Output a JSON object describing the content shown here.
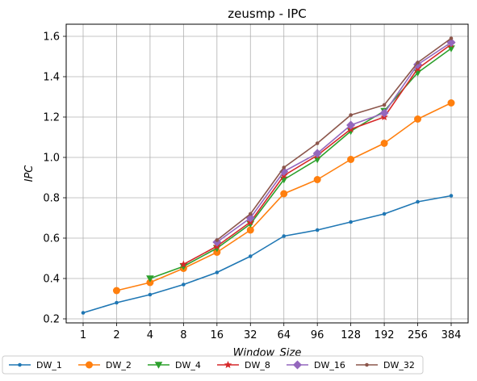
{
  "chart_data": {
    "type": "line",
    "title": "zeusmp - IPC",
    "xlabel": "Window_Size",
    "ylabel": "IPC",
    "categories": [
      "1",
      "2",
      "4",
      "8",
      "16",
      "32",
      "64",
      "96",
      "128",
      "192",
      "256",
      "384"
    ],
    "ylim": [
      0.18,
      1.66
    ],
    "yticks": [
      "0.2",
      "0.4",
      "0.6",
      "0.8",
      "1.0",
      "1.2",
      "1.4",
      "1.6"
    ],
    "grid": true,
    "legend_position": "bottom",
    "series": [
      {
        "name": "DW_1",
        "color": "#1f77b4",
        "marker": "point",
        "values": [
          0.23,
          0.28,
          0.32,
          0.37,
          0.43,
          0.51,
          0.61,
          0.64,
          0.68,
          0.72,
          0.78,
          0.81
        ]
      },
      {
        "name": "DW_2",
        "color": "#ff7f0e",
        "marker": "circle",
        "values": [
          null,
          0.34,
          0.38,
          0.45,
          0.53,
          0.64,
          0.82,
          0.89,
          0.99,
          1.07,
          1.19,
          1.27
        ]
      },
      {
        "name": "DW_4",
        "color": "#2ca02c",
        "marker": "triangle",
        "values": [
          null,
          null,
          0.4,
          0.46,
          0.55,
          0.67,
          0.89,
          0.99,
          1.13,
          1.23,
          1.42,
          1.54
        ]
      },
      {
        "name": "DW_8",
        "color": "#d62728",
        "marker": "star",
        "values": [
          null,
          null,
          null,
          0.47,
          0.56,
          0.68,
          0.91,
          1.01,
          1.14,
          1.2,
          1.44,
          1.56
        ]
      },
      {
        "name": "DW_16",
        "color": "#9467bd",
        "marker": "diamond",
        "values": [
          null,
          null,
          null,
          null,
          0.58,
          0.7,
          0.93,
          1.02,
          1.16,
          1.22,
          1.46,
          1.57
        ]
      },
      {
        "name": "DW_32",
        "color": "#8c564b",
        "marker": "point",
        "values": [
          null,
          null,
          null,
          null,
          0.59,
          0.72,
          0.95,
          1.07,
          1.21,
          1.26,
          1.47,
          1.59
        ]
      }
    ]
  }
}
